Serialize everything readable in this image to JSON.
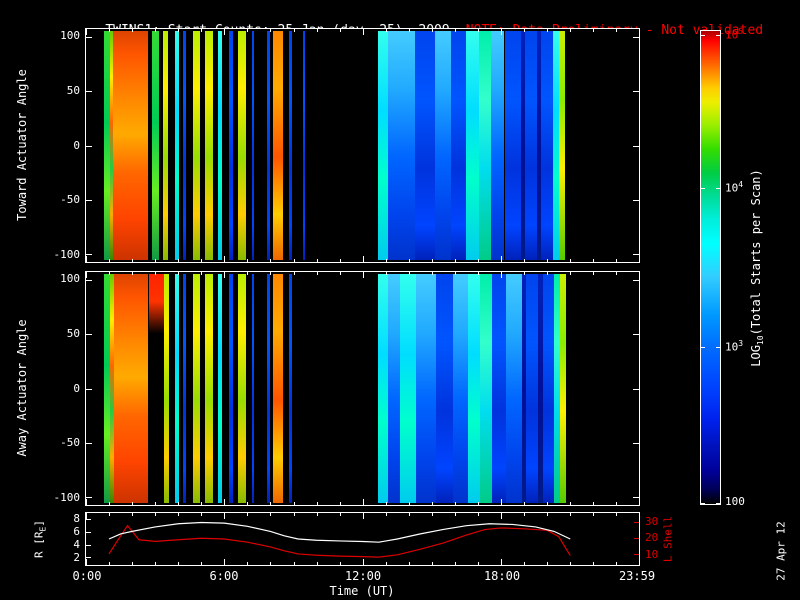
{
  "title": {
    "main": "TWINS1: Start Counts: 25 Jan (day  25), 2009",
    "note": "NOTE: Data Preliminary - Not validated"
  },
  "colors": {
    "background": "#000000",
    "foreground": "#ffffff",
    "note": "#ff0000",
    "l_shell_red": "#dd0000"
  },
  "panels": [
    {
      "ylabel": "Toward Actuator Angle",
      "yticks": [
        "100",
        "50",
        "0",
        "-50",
        "-100"
      ]
    },
    {
      "ylabel": "Away Actuator Angle",
      "yticks": [
        "100",
        "50",
        "0",
        "-50",
        "-100"
      ]
    }
  ],
  "xaxis": {
    "label": "Time (UT)",
    "ticks": [
      "0:00",
      "6:00",
      "12:00",
      "18:00",
      "23:59"
    ]
  },
  "colorbar": {
    "title_parts": {
      "pre": "LOG",
      "sub": "10",
      "post": "(Total Starts per Scan)"
    },
    "ticks": [
      {
        "base": "10",
        "exp": "5",
        "color": "#ff0000",
        "pos": 0.01
      },
      {
        "base": "10",
        "exp": "4",
        "color": "#ffffff",
        "pos": 0.3333
      },
      {
        "base": "10",
        "exp": "3",
        "color": "#ffffff",
        "pos": 0.6667
      },
      {
        "base": "100",
        "exp": "",
        "color": "#ffffff",
        "pos": 0.995
      }
    ]
  },
  "bottom_panel": {
    "left_axis": {
      "label_parts": {
        "pre": "R [R",
        "sub": "E",
        "post": "]"
      },
      "ticks": [
        "8",
        "6",
        "4",
        "2"
      ],
      "tick_values": [
        8,
        6,
        4,
        2
      ],
      "range": [
        0.8,
        9.0
      ]
    },
    "right_axis": {
      "label": "L Shell",
      "ticks": [
        "30",
        "20",
        "10"
      ],
      "tick_values": [
        30,
        20,
        10
      ],
      "range": [
        3,
        36
      ]
    }
  },
  "watermark": "27 Apr 12",
  "chart_data": {
    "type": "heatmap",
    "title": "TWINS1: Start Counts: 25 Jan (day 25), 2009",
    "subtitle": "NOTE: Data Preliminary - Not validated",
    "x_axis": "Time (UT), hours 0 to 23:59",
    "time_range_hours": [
      0,
      23.983
    ],
    "x_tick_hours": [
      0,
      6,
      12,
      18,
      23.983
    ],
    "y_axis": "Actuator Angle (degrees)",
    "y_range_degrees": [
      -107,
      107
    ],
    "y_ticks": [
      100,
      50,
      0,
      -50,
      -100
    ],
    "color_scale": {
      "label": "LOG10(Total Starts per Scan)",
      "min": 100,
      "max": 100000,
      "scale": "log"
    },
    "legend_position": "right colorbar",
    "heatmaps": [
      {
        "name": "toward",
        "segments": [
          [
            0.8,
            1.02,
            "green"
          ],
          [
            1.02,
            1.18,
            "rainbow"
          ],
          [
            1.18,
            2.7,
            "hot"
          ],
          [
            2.88,
            3.15,
            "green"
          ],
          [
            3.35,
            3.55,
            "yellow"
          ],
          [
            3.88,
            4.02,
            "cyan"
          ],
          [
            4.22,
            4.34,
            "blue"
          ],
          [
            4.62,
            4.95,
            "yellow"
          ],
          [
            5.15,
            5.52,
            "yellow"
          ],
          [
            5.72,
            5.88,
            "cyan"
          ],
          [
            6.22,
            6.38,
            "blue"
          ],
          [
            6.58,
            6.95,
            "yellow"
          ],
          [
            7.18,
            7.3,
            "blue"
          ],
          [
            7.85,
            7.97,
            "blue"
          ],
          [
            8.1,
            8.55,
            "orange"
          ],
          [
            8.82,
            8.94,
            "blue"
          ],
          [
            9.4,
            9.5,
            "blue"
          ],
          [
            12.65,
            13.1,
            "cyan"
          ],
          [
            13.1,
            13.55,
            "bluecyan"
          ],
          [
            13.55,
            14.25,
            "bluecyan"
          ],
          [
            14.25,
            15.15,
            "blue"
          ],
          [
            15.15,
            15.85,
            "bluecyan"
          ],
          [
            15.85,
            16.5,
            "blue"
          ],
          [
            16.5,
            17.05,
            "cyan"
          ],
          [
            17.05,
            17.55,
            "greencyan"
          ],
          [
            17.55,
            18.15,
            "bluecyan"
          ],
          [
            18.15,
            18.85,
            "blue"
          ],
          [
            18.85,
            19.05,
            "deepblue"
          ],
          [
            19.05,
            19.55,
            "blue"
          ],
          [
            19.55,
            19.75,
            "deepblue"
          ],
          [
            19.75,
            20.25,
            "blue"
          ],
          [
            20.25,
            20.5,
            "cyan"
          ],
          [
            20.5,
            20.78,
            "yellowgreen"
          ]
        ]
      },
      {
        "name": "away",
        "segments": [
          [
            0.8,
            1.02,
            "green"
          ],
          [
            1.02,
            1.2,
            "rainbow"
          ],
          [
            1.2,
            2.7,
            "hot"
          ],
          [
            2.75,
            3.4,
            "hottop"
          ],
          [
            3.4,
            3.6,
            "yellow"
          ],
          [
            3.88,
            4.02,
            "cyan"
          ],
          [
            4.22,
            4.34,
            "blue"
          ],
          [
            4.62,
            4.95,
            "yellow"
          ],
          [
            5.15,
            5.52,
            "yellow"
          ],
          [
            5.72,
            5.88,
            "cyan"
          ],
          [
            6.22,
            6.38,
            "blue"
          ],
          [
            6.58,
            6.95,
            "yellow"
          ],
          [
            7.18,
            7.3,
            "blue"
          ],
          [
            7.85,
            7.97,
            "blue"
          ],
          [
            8.1,
            8.55,
            "orange"
          ],
          [
            8.82,
            8.94,
            "blue"
          ],
          [
            12.65,
            13.1,
            "cyan"
          ],
          [
            13.1,
            13.6,
            "bluecyan"
          ],
          [
            13.6,
            14.3,
            "cyan"
          ],
          [
            14.3,
            15.2,
            "bluecyan"
          ],
          [
            15.2,
            15.9,
            "blue"
          ],
          [
            15.9,
            16.55,
            "bluecyan"
          ],
          [
            16.55,
            17.1,
            "cyan"
          ],
          [
            17.1,
            17.6,
            "greencyan"
          ],
          [
            17.6,
            18.2,
            "blue"
          ],
          [
            18.2,
            18.9,
            "bluecyan"
          ],
          [
            18.9,
            19.1,
            "deepblue"
          ],
          [
            19.1,
            19.6,
            "blue"
          ],
          [
            19.6,
            19.8,
            "deepblue"
          ],
          [
            19.8,
            20.3,
            "blue"
          ],
          [
            20.3,
            20.55,
            "greencyan"
          ],
          [
            20.55,
            20.8,
            "yellowgreen"
          ]
        ]
      }
    ],
    "lines": {
      "r_re": [
        [
          1.0,
          4.9
        ],
        [
          1.5,
          5.7
        ],
        [
          2.0,
          6.1
        ],
        [
          3.0,
          6.8
        ],
        [
          4.0,
          7.3
        ],
        [
          5.0,
          7.5
        ],
        [
          6.0,
          7.4
        ],
        [
          7.0,
          6.9
        ],
        [
          8.0,
          6.1
        ],
        [
          8.6,
          5.4
        ],
        [
          9.2,
          4.9
        ],
        [
          10.0,
          4.7
        ],
        [
          11.0,
          4.6
        ],
        [
          12.0,
          4.5
        ],
        [
          12.7,
          4.4
        ],
        [
          13.5,
          4.9
        ],
        [
          14.5,
          5.7
        ],
        [
          15.5,
          6.4
        ],
        [
          16.5,
          7.0
        ],
        [
          17.5,
          7.3
        ],
        [
          18.5,
          7.2
        ],
        [
          19.5,
          6.8
        ],
        [
          20.3,
          6.1
        ],
        [
          21.0,
          4.9
        ]
      ],
      "l_shell": [
        [
          1.0,
          10
        ],
        [
          1.3,
          17
        ],
        [
          1.8,
          28
        ],
        [
          2.3,
          19
        ],
        [
          3.0,
          18
        ],
        [
          4.0,
          19
        ],
        [
          5.0,
          20
        ],
        [
          6.0,
          19.5
        ],
        [
          7.0,
          17.5
        ],
        [
          8.0,
          14.5
        ],
        [
          8.6,
          12
        ],
        [
          9.2,
          10
        ],
        [
          10.0,
          9.2
        ],
        [
          11.0,
          8.6
        ],
        [
          12.0,
          8.3
        ],
        [
          12.7,
          8.0
        ],
        [
          13.5,
          9.5
        ],
        [
          14.5,
          13
        ],
        [
          15.5,
          17
        ],
        [
          16.5,
          22
        ],
        [
          17.3,
          25.5
        ],
        [
          18.0,
          26.5
        ],
        [
          19.0,
          26
        ],
        [
          20.0,
          25
        ],
        [
          20.5,
          21
        ],
        [
          21.0,
          9
        ]
      ]
    }
  }
}
